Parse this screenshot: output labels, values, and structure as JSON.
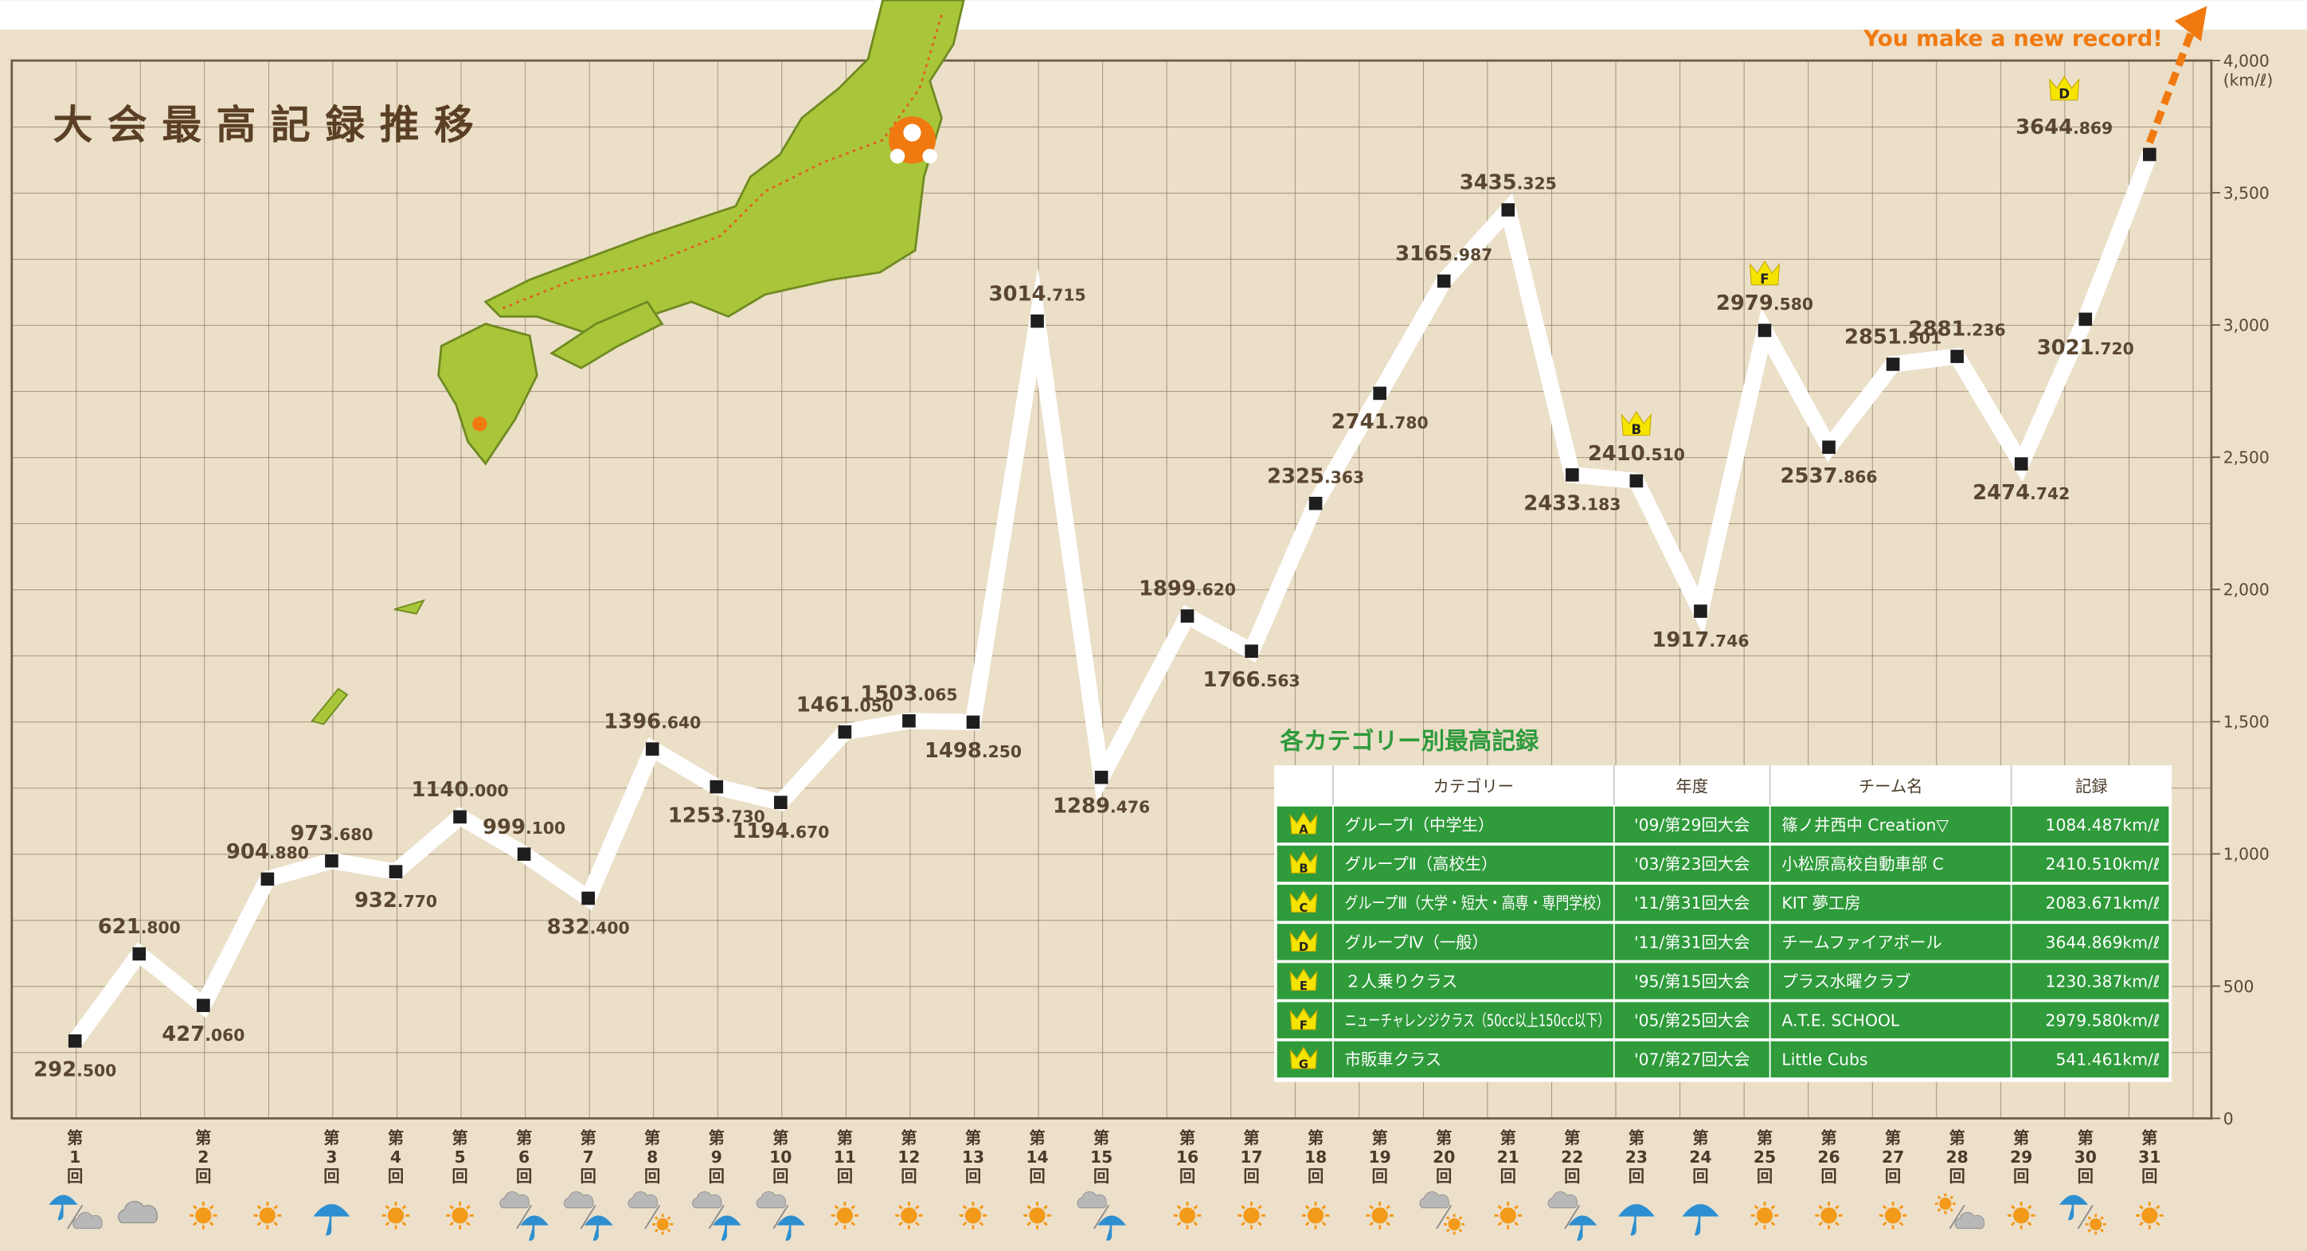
{
  "chart_data": {
    "type": "line",
    "title": "大会最高記録推移",
    "categories": [
      "第1回",
      null,
      "第2回",
      null,
      "第3回",
      "第4回",
      "第5回",
      "第6回",
      "第7回",
      "第8回",
      "第9回",
      "第10回",
      "第11回",
      "第12回",
      "第13回",
      "第14回",
      "第15回",
      "第16回",
      "第17回",
      "第18回",
      "第19回",
      "第20回",
      "第21回",
      "第22回",
      "第23回",
      "第24回",
      "第25回",
      "第26回",
      "第27回",
      "第28回",
      "第29回",
      "第30回",
      "第31回"
    ],
    "values": [
      292.5,
      621.8,
      427.06,
      904.88,
      973.68,
      932.77,
      1140.0,
      999.1,
      832.4,
      1396.64,
      1253.73,
      1194.67,
      1461.05,
      1503.065,
      1498.25,
      3014.715,
      1289.476,
      1899.62,
      1766.563,
      2325.363,
      2741.78,
      3165.987,
      3435.325,
      2433.183,
      2410.51,
      1917.746,
      2979.58,
      2537.866,
      2851.501,
      2881.236,
      2474.742,
      3021.72,
      3644.869
    ],
    "value_labels": [
      "292.500",
      "621.800",
      "427.060",
      "904.880",
      "973.680",
      "932.770",
      "1140.000",
      "999.100",
      "832.400",
      "1396.640",
      "1253.730",
      "1194.670",
      "1461.050",
      "1503.065",
      "1498.250",
      "3014.715",
      "1289.476",
      "1899.620",
      "1766.563",
      "2325.363",
      "2741.780",
      "3165.987",
      "3435.325",
      "2433.183",
      "2410.510",
      "1917.746",
      "2979.580",
      "2537.866",
      "2851.501",
      "2881.236",
      "2474.742",
      "3021.720",
      "3644.869"
    ],
    "crowns": [
      null,
      null,
      null,
      null,
      null,
      null,
      null,
      null,
      null,
      null,
      null,
      null,
      null,
      null,
      null,
      null,
      null,
      null,
      null,
      null,
      null,
      null,
      null,
      null,
      "B",
      null,
      "F",
      null,
      null,
      null,
      null,
      null,
      "D"
    ],
    "ylim": [
      0,
      4000
    ],
    "yticks": [
      0,
      500,
      {
        "value": 1000,
        "label": "1,000"
      },
      {
        "value": 1500,
        "label": "1,500"
      },
      {
        "value": 2000,
        "label": "2,000"
      },
      {
        "value": 2500,
        "label": "2,500"
      },
      {
        "value": 3000,
        "label": "3,000"
      },
      {
        "value": 3500,
        "label": "3,500"
      },
      {
        "value": 4000,
        "label": "4,000"
      }
    ],
    "y_unit": "(km/ℓ)",
    "annotation": "You make a new record!",
    "line_color": "#ffffff",
    "marker_color": "#1e1e1e",
    "record_color": "#e0101e",
    "annotation_color": "#f07a10"
  },
  "table": {
    "title": "各カテゴリー別最高記録",
    "header": [
      "カテゴリー",
      "年度",
      "チーム名",
      "記録"
    ],
    "rows": [
      [
        "A",
        "グループⅠ（中学生）",
        "'09/第29回大会",
        "篠ノ井西中 Creation▽",
        "1084.487km/ℓ"
      ],
      [
        "B",
        "グループⅡ（高校生）",
        "'03/第23回大会",
        "小松原高校自動車部 C",
        "2410.510km/ℓ"
      ],
      [
        "C",
        "グループⅢ（大学・短大・高専・専門学校）",
        "'11/第31回大会",
        "KIT 夢工房",
        "2083.671km/ℓ"
      ],
      [
        "D",
        "グループⅣ（一般）",
        "'11/第31回大会",
        "チームファイアボール",
        "3644.869km/ℓ"
      ],
      [
        "E",
        "２人乗りクラス",
        "'95/第15回大会",
        "プラス水曜クラブ",
        "1230.387km/ℓ"
      ],
      [
        "F",
        "ニューチャレンジクラス（50cc以上150cc以下）",
        "'05/第25回大会",
        "A.T.E. SCHOOL",
        "2979.580km/ℓ"
      ],
      [
        "G",
        "市販車クラス",
        "'07/第27回大会",
        "Little Cubs",
        "541.461km/ℓ"
      ]
    ]
  }
}
